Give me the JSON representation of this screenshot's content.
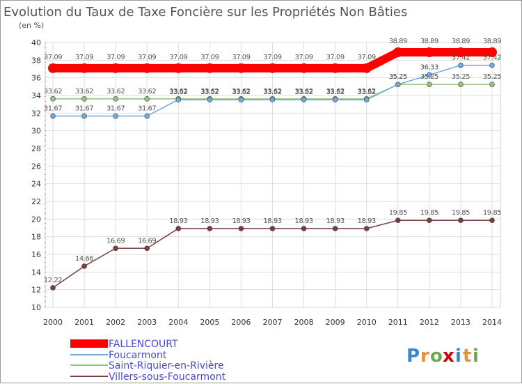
{
  "chart_data": {
    "type": "line",
    "title": "Evolution du Taux de Taxe Foncière sur les Propriétés Non Bâties",
    "subtitle": "(en %)",
    "xlabel": "",
    "ylabel": "",
    "ylim": [
      10,
      40
    ],
    "yticks": [
      10,
      12,
      14,
      16,
      18,
      20,
      22,
      24,
      26,
      28,
      30,
      32,
      34,
      36,
      38,
      40
    ],
    "grid": true,
    "legend_position": "bottom-left",
    "categories": [
      "2000",
      "2001",
      "2002",
      "2003",
      "2004",
      "2005",
      "2006",
      "2007",
      "2008",
      "2009",
      "2010",
      "2011",
      "2012",
      "2013",
      "2014"
    ],
    "series": [
      {
        "name": "FALLENCOURT",
        "color": "#ff0000",
        "values": [
          37.09,
          37.09,
          37.09,
          37.09,
          37.09,
          37.09,
          37.09,
          37.09,
          37.09,
          37.09,
          37.09,
          38.89,
          38.89,
          38.89,
          38.89
        ],
        "labels": [
          "37.09",
          "37.09",
          "37.09",
          "37.09",
          "37.09",
          "37.09",
          "37.09",
          "37.09",
          "37.09",
          "37.09",
          "37.09",
          "38.89",
          "38.89",
          "38.89",
          "38.89"
        ]
      },
      {
        "name": "Foucarmont",
        "color": "#6fa8dc",
        "values": [
          31.67,
          31.67,
          31.67,
          31.67,
          33.52,
          33.52,
          33.52,
          33.52,
          33.52,
          33.52,
          33.52,
          35.25,
          36.33,
          37.42,
          37.42
        ],
        "labels": [
          "31.67",
          "31.67",
          "31.67",
          "31.67",
          "33.52",
          "33.52",
          "33.52",
          "33.52",
          "33.52",
          "33.52",
          "33.52",
          "35.25",
          "36.33",
          "37.42",
          "37.42"
        ]
      },
      {
        "name": "Saint-Riquier-en-Rivière",
        "color": "#93c47d",
        "values": [
          33.62,
          33.62,
          33.62,
          33.62,
          33.62,
          33.62,
          33.62,
          33.62,
          33.62,
          33.62,
          33.62,
          35.25,
          35.25,
          35.25,
          35.25
        ],
        "labels": [
          "33.62",
          "33.62",
          "33.62",
          "33.62",
          "33.62",
          "33.62",
          "33.62",
          "33.62",
          "33.62",
          "33.62",
          "33.62",
          "35.25",
          "35.25",
          "35.25",
          "35.25"
        ]
      },
      {
        "name": "Villers-sous-Foucarmont",
        "color": "#7b3f3f",
        "values": [
          12.22,
          14.66,
          16.69,
          16.69,
          18.93,
          18.93,
          18.93,
          18.93,
          18.93,
          18.93,
          18.93,
          19.85,
          19.85,
          19.85,
          19.85
        ],
        "labels": [
          "12.22",
          "14.66",
          "16.69",
          "16.69",
          "18.93",
          "18.93",
          "18.93",
          "18.93",
          "18.93",
          "18.93",
          "18.93",
          "19.85",
          "19.85",
          "19.85",
          "19.85"
        ]
      }
    ]
  },
  "branding": {
    "logo_text": "Proxiti",
    "logo_letters": [
      "P",
      "r",
      "o",
      "x",
      "i",
      "t",
      "i"
    ],
    "logo_colors": [
      "#3d85c6",
      "#e69138",
      "#6aa84f",
      "#cc0000",
      "#3d85c6",
      "#e69138",
      "#6aa84f"
    ]
  }
}
